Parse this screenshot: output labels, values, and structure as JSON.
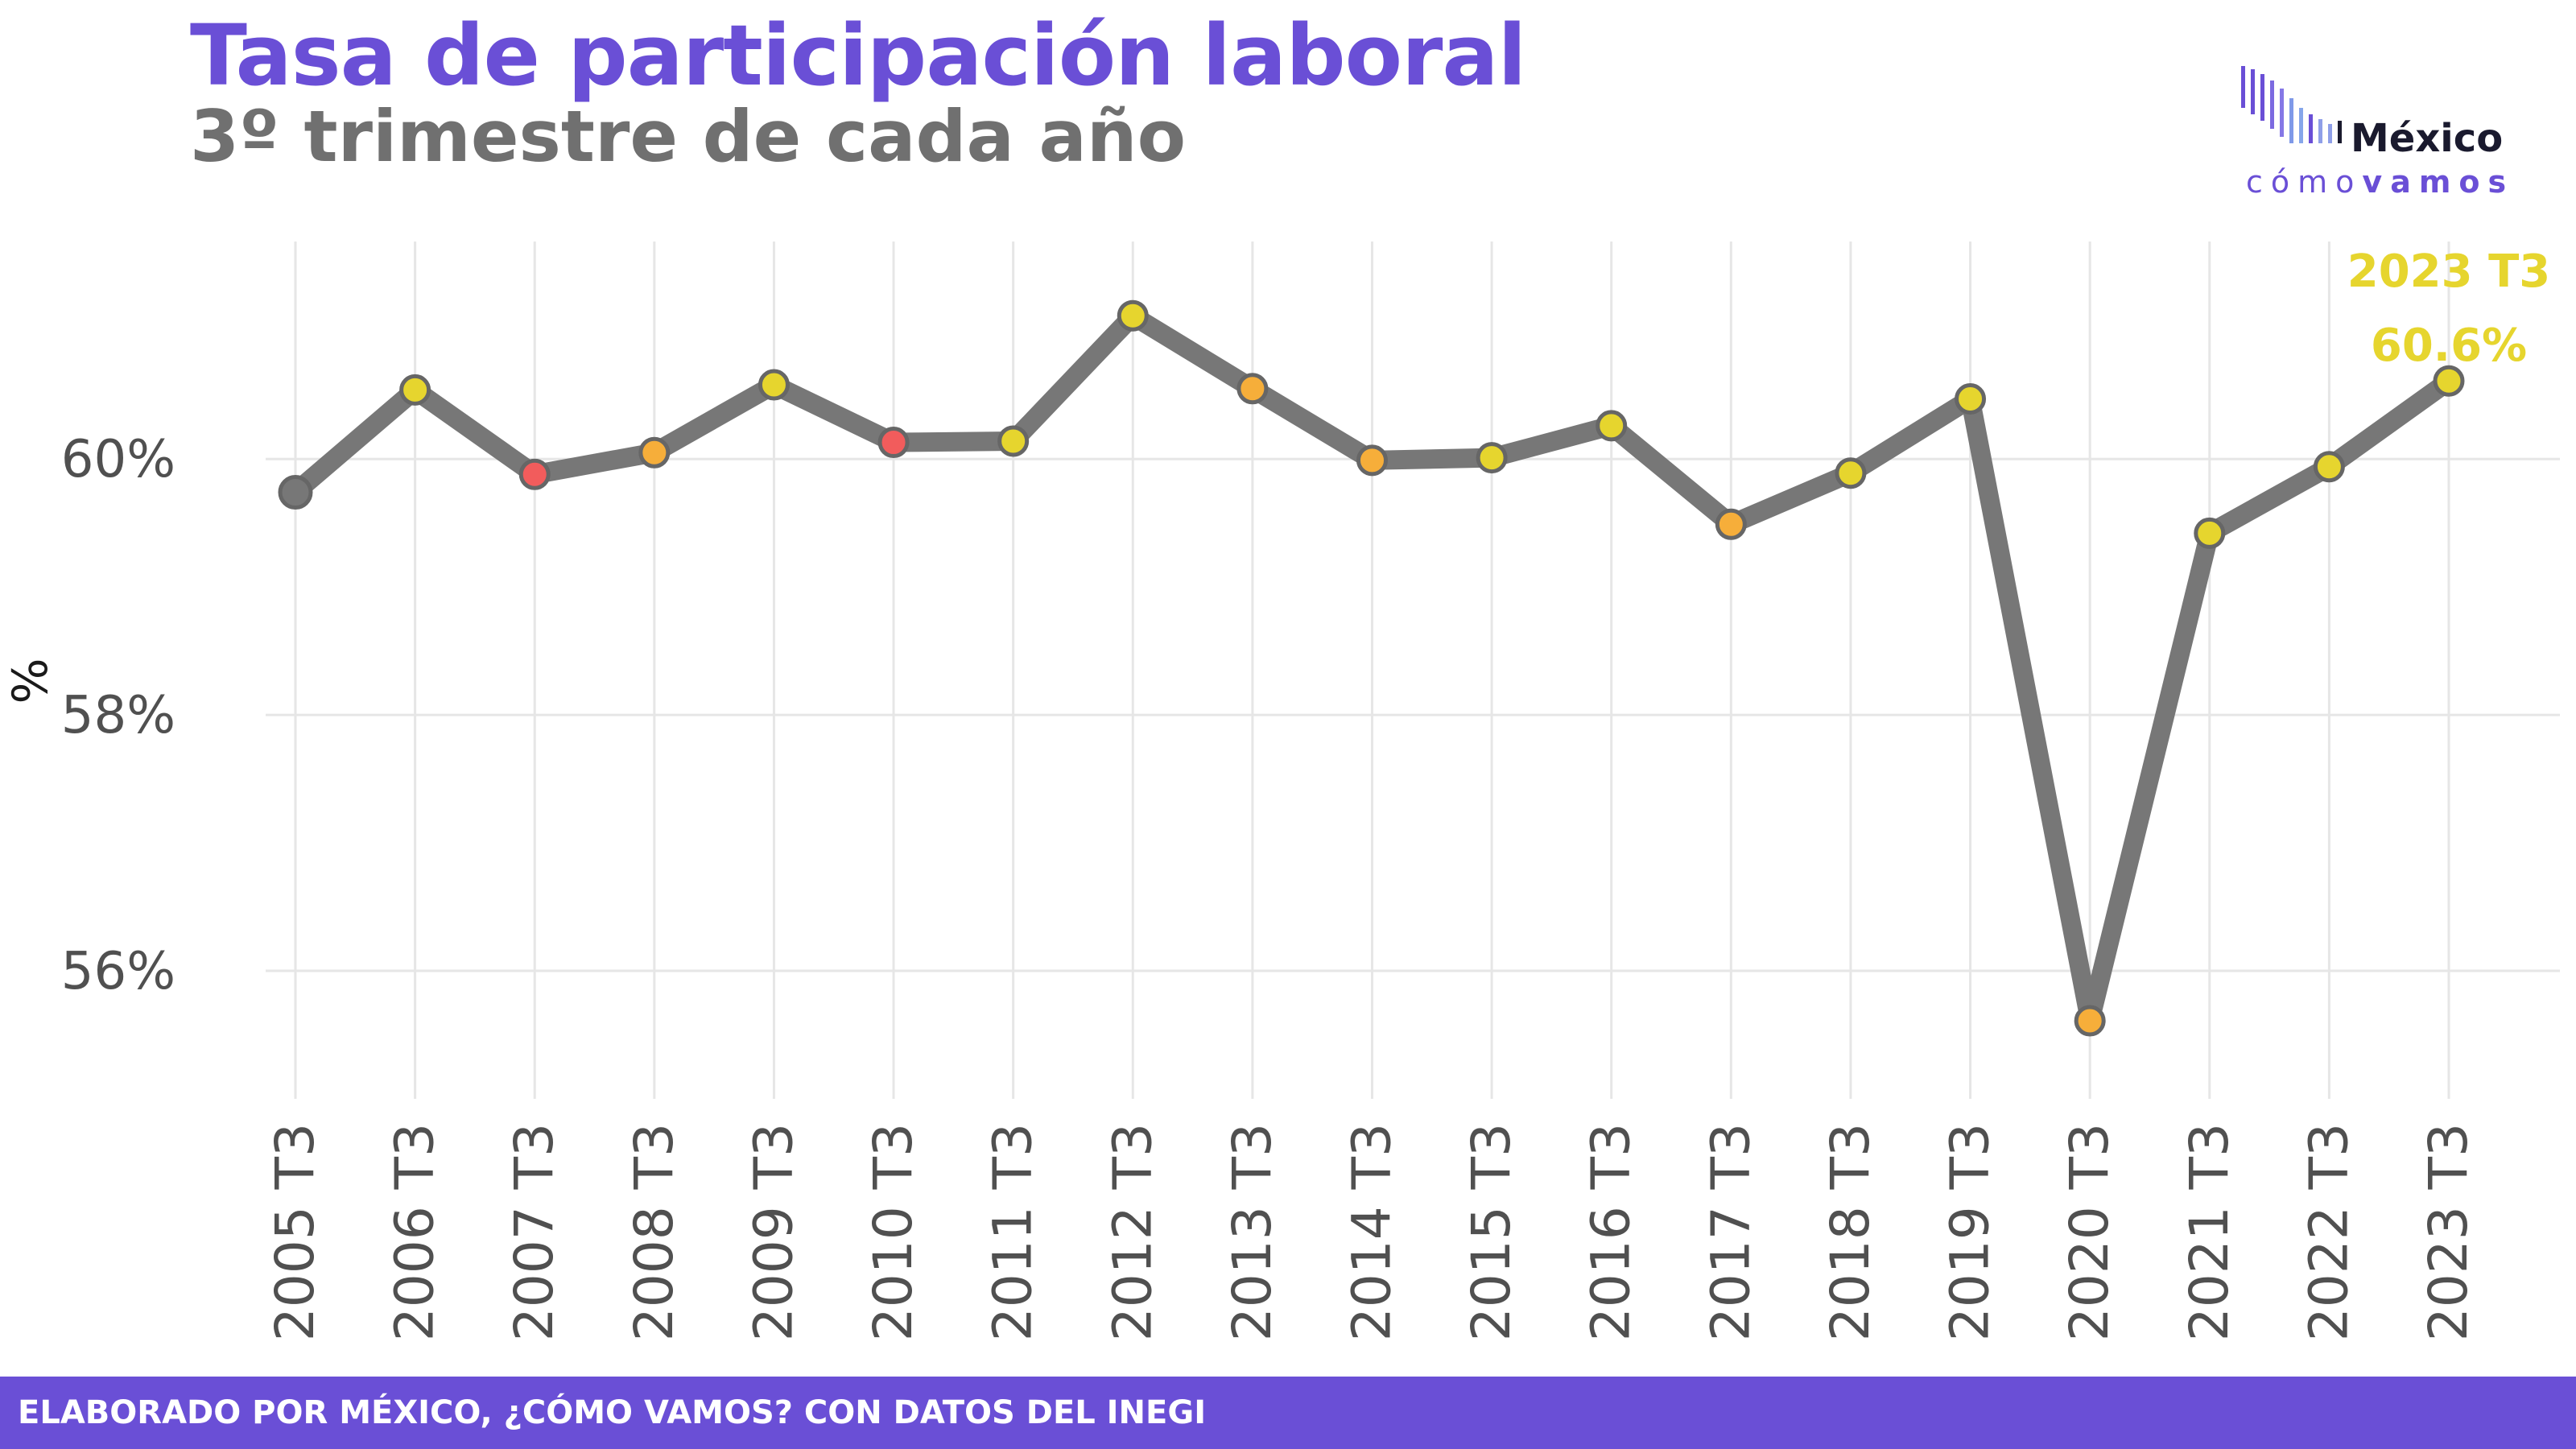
{
  "title": "Tasa de participación laboral",
  "subtitle": "3º trimestre de cada año",
  "logo": {
    "word": "México",
    "sub_light": "cómo",
    "sub_bold": "vamos"
  },
  "footer": "ELABORADO POR MÉXICO, ¿CÓMO VAMOS? CON DATOS DEL INEGI",
  "colors": {
    "brand": "#6a4fd6",
    "line": "#777777",
    "point_yellow": "#e6d52e",
    "point_orange": "#f6ae3a",
    "point_red": "#f25c5c",
    "point_gray": "#777777",
    "annotation": "#e6d52e",
    "grid": "#e6e6e6"
  },
  "chart_data": {
    "type": "line",
    "categories": [
      "2005 T3",
      "2006 T3",
      "2007 T3",
      "2008 T3",
      "2009 T3",
      "2010 T3",
      "2011 T3",
      "2012 T3",
      "2013 T3",
      "2014 T3",
      "2015 T3",
      "2016 T3",
      "2017 T3",
      "2018 T3",
      "2019 T3",
      "2020 T3",
      "2021 T3",
      "2022 T3",
      "2023 T3"
    ],
    "series": [
      {
        "values": [
          59.74,
          60.54,
          59.88,
          60.05,
          60.58,
          60.13,
          60.14,
          61.12,
          60.55,
          59.99,
          60.01,
          60.26,
          59.49,
          59.89,
          60.47,
          55.61,
          59.42,
          59.94,
          60.61
        ],
        "point_colors": [
          "gray",
          "yellow",
          "red",
          "orange",
          "yellow",
          "red",
          "yellow",
          "yellow",
          "orange",
          "orange",
          "yellow",
          "yellow",
          "orange",
          "yellow",
          "yellow",
          "orange",
          "yellow",
          "yellow",
          "yellow"
        ]
      }
    ],
    "ylabel": "%",
    "xlabel": "",
    "ylim": [
      55.0,
      61.7
    ],
    "yticks": [
      56,
      58,
      60
    ],
    "ytick_labels": [
      "56%",
      "58%",
      "60%"
    ],
    "grid": true,
    "annotation": {
      "label": "2023 T3",
      "value": "60.6%"
    }
  }
}
